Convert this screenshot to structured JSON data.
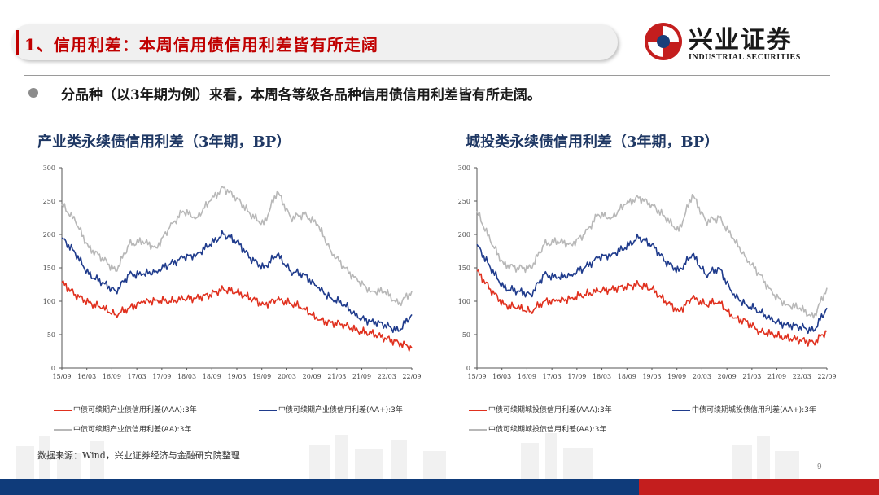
{
  "header": {
    "title": "1、信用利差：本周信用债信用利差皆有所走阔",
    "brand_cn": "兴业证券",
    "brand_en": "INDUSTRIAL SECURITIES"
  },
  "bullet": "分品种（以3年期为例）来看，本周各等级各品种信用债信用利差皆有所走阔。",
  "source": "数据来源：Wind，兴业证券经济与金融研究院整理",
  "page_number": "9",
  "colors": {
    "accent_red": "#c00000",
    "navy": "#0f3b7a",
    "aaa": "#e0301e",
    "aa_plus": "#1f3b8c",
    "aa": "#b8b8b8"
  },
  "chart_data": [
    {
      "type": "line",
      "title": "产业类永续债信用利差（3年期，BP）",
      "ylim": [
        0,
        300
      ],
      "yticks": [
        "0",
        "50",
        "100",
        "150",
        "200",
        "250",
        "300"
      ],
      "xticks": [
        "15/09",
        "16/03",
        "16/09",
        "17/03",
        "17/09",
        "18/03",
        "18/09",
        "19/03",
        "19/09",
        "20/03",
        "20/09",
        "21/03",
        "21/09",
        "22/03",
        "22/09"
      ],
      "series": [
        {
          "name": "中债可续期产业债信用利差(AAA):3年",
          "color": "#e0301e",
          "values": [
            128,
            110,
            98,
            90,
            80,
            90,
            98,
            102,
            100,
            103,
            105,
            110,
            118,
            113,
            105,
            95,
            102,
            97,
            90,
            72,
            68,
            65,
            55,
            52,
            45,
            38,
            30
          ]
        },
        {
          "name": "中债可续期产业债信用利差(AA+):3年",
          "color": "#1f3b8c",
          "values": [
            195,
            172,
            140,
            128,
            115,
            140,
            140,
            145,
            155,
            165,
            170,
            185,
            200,
            190,
            165,
            150,
            170,
            145,
            140,
            120,
            105,
            95,
            75,
            70,
            65,
            55,
            80
          ]
        },
        {
          "name": "中债可续期产业债信用利差(AA):3年",
          "color": "#b8b8b8",
          "values": [
            245,
            220,
            180,
            165,
            145,
            185,
            190,
            180,
            210,
            235,
            225,
            250,
            270,
            255,
            230,
            215,
            265,
            225,
            230,
            215,
            175,
            150,
            130,
            115,
            115,
            95,
            115
          ]
        }
      ]
    },
    {
      "type": "line",
      "title": "城投类永续债信用利差（3年期，BP）",
      "ylim": [
        0,
        300
      ],
      "yticks": [
        "0",
        "50",
        "100",
        "150",
        "200",
        "250",
        "300"
      ],
      "xticks": [
        "15/09",
        "16/03",
        "16/09",
        "17/03",
        "17/09",
        "18/03",
        "18/09",
        "19/03",
        "19/09",
        "20/03",
        "20/09",
        "21/03",
        "21/09",
        "22/03",
        "22/09"
      ],
      "series": [
        {
          "name": "中债可续期城投债信用利差(AAA):3年",
          "color": "#e0301e",
          "values": [
            145,
            118,
            95,
            90,
            85,
            100,
            100,
            105,
            110,
            115,
            118,
            122,
            125,
            118,
            100,
            85,
            105,
            95,
            100,
            75,
            70,
            55,
            50,
            45,
            42,
            38,
            55
          ]
        },
        {
          "name": "中债可续期城投债信用利差(AA+):3年",
          "color": "#1f3b8c",
          "values": [
            185,
            150,
            120,
            115,
            110,
            140,
            135,
            140,
            150,
            165,
            170,
            180,
            195,
            185,
            160,
            145,
            170,
            140,
            150,
            110,
            95,
            85,
            70,
            65,
            62,
            55,
            90
          ]
        },
        {
          "name": "中债可续期城投债信用利差(AA):3年",
          "color": "#b8b8b8",
          "values": [
            235,
            190,
            155,
            150,
            150,
            185,
            190,
            185,
            200,
            230,
            225,
            245,
            255,
            245,
            225,
            205,
            260,
            220,
            225,
            195,
            165,
            140,
            110,
            95,
            90,
            75,
            120
          ]
        }
      ]
    }
  ]
}
